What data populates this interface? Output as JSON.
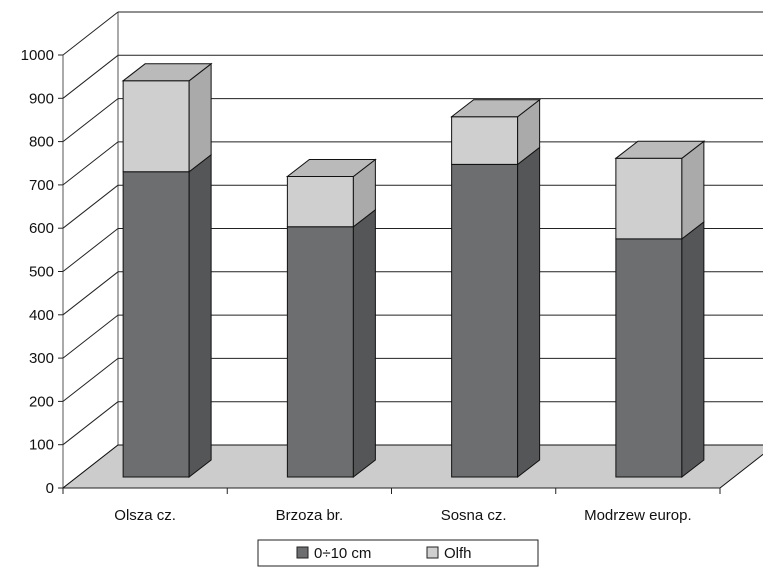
{
  "chart_data": {
    "type": "bar",
    "stacked": true,
    "three_d": true,
    "categories": [
      "Olsza cz.",
      "Brzoza br.",
      "Sosna cz.",
      "Modrzew europ."
    ],
    "series": [
      {
        "name": "0÷10 cm",
        "values": [
          705,
          578,
          722,
          550
        ],
        "color": "#6d6e70"
      },
      {
        "name": "Olfh",
        "values": [
          210,
          116,
          110,
          186
        ],
        "color": "#cfcfcf"
      }
    ],
    "y_ticks": [
      "0",
      "100",
      "200",
      "300",
      "400",
      "500",
      "600",
      "700",
      "800",
      "900",
      "1000"
    ],
    "ylim": [
      0,
      1000
    ],
    "grid": true,
    "legend_position": "bottom",
    "floor_color": "#cccccc",
    "title": "",
    "xlabel": "",
    "ylabel": ""
  }
}
